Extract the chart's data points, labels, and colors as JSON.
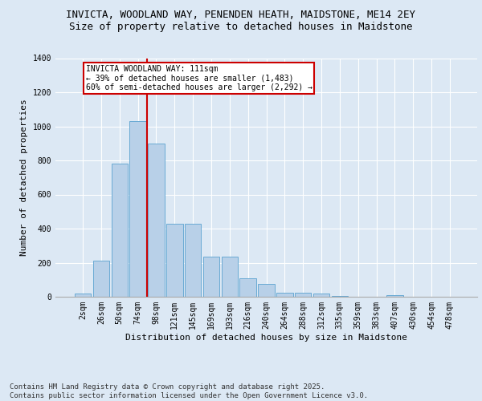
{
  "title1": "INVICTA, WOODLAND WAY, PENENDEN HEATH, MAIDSTONE, ME14 2EY",
  "title2": "Size of property relative to detached houses in Maidstone",
  "xlabel": "Distribution of detached houses by size in Maidstone",
  "ylabel": "Number of detached properties",
  "footnote": "Contains HM Land Registry data © Crown copyright and database right 2025.\nContains public sector information licensed under the Open Government Licence v3.0.",
  "bar_labels": [
    "2sqm",
    "26sqm",
    "50sqm",
    "74sqm",
    "98sqm",
    "121sqm",
    "145sqm",
    "169sqm",
    "193sqm",
    "216sqm",
    "240sqm",
    "264sqm",
    "288sqm",
    "312sqm",
    "335sqm",
    "359sqm",
    "383sqm",
    "407sqm",
    "430sqm",
    "454sqm",
    "478sqm"
  ],
  "bar_values": [
    18,
    210,
    780,
    1030,
    900,
    430,
    430,
    235,
    235,
    110,
    75,
    22,
    22,
    20,
    5,
    0,
    0,
    10,
    0,
    0,
    0
  ],
  "bar_color": "#b8d0e8",
  "bar_edgecolor": "#6aaad4",
  "vline_x": 3.5,
  "vline_color": "#cc0000",
  "annotation_text": "INVICTA WOODLAND WAY: 111sqm\n← 39% of detached houses are smaller (1,483)\n60% of semi-detached houses are larger (2,292) →",
  "annotation_box_color": "#cc0000",
  "ylim": [
    0,
    1400
  ],
  "yticks": [
    0,
    200,
    400,
    600,
    800,
    1000,
    1200,
    1400
  ],
  "bg_color": "#dce8f4",
  "plot_bg_color": "#dce8f4",
  "title1_fontsize": 9,
  "title2_fontsize": 9,
  "footnote_fontsize": 6.5,
  "axis_label_fontsize": 8,
  "tick_fontsize": 7
}
